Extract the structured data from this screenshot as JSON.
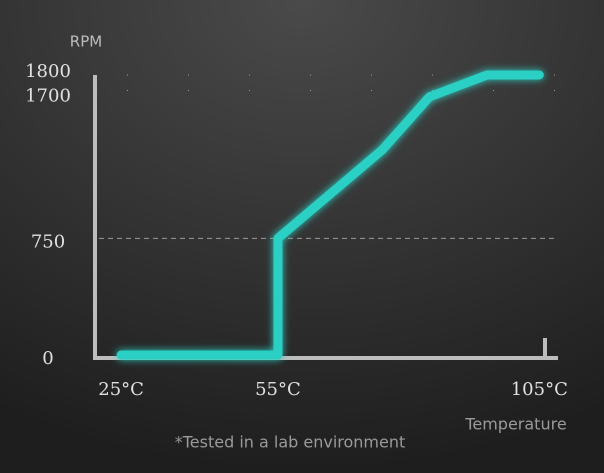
{
  "chart_data": {
    "type": "line",
    "y_label": "RPM",
    "x_label": "Temperature",
    "note": "*Tested in a lab environment",
    "x": [
      25,
      55,
      55,
      75,
      84,
      95,
      105
    ],
    "series": [
      {
        "color": "#2ad0c4",
        "values": [
          0,
          0,
          750,
          1320,
          1660,
          1800,
          1800
        ]
      }
    ],
    "xlim": [
      20,
      108
    ],
    "xticks": [
      {
        "value": 25,
        "label": "25°C"
      },
      {
        "value": 55,
        "label": "55°C"
      },
      {
        "value": 105,
        "label": "105°C"
      }
    ],
    "ylim": [
      0,
      1800
    ],
    "yticks": [
      0,
      750,
      1700,
      1800
    ],
    "grid": true
  }
}
